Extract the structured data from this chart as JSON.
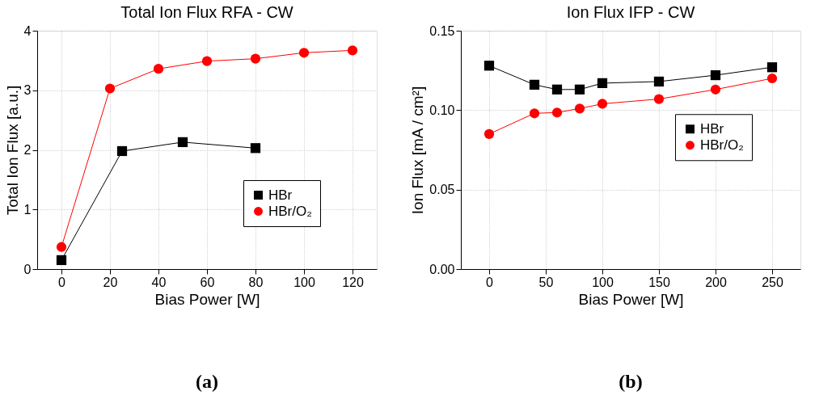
{
  "chart_data": [
    {
      "type": "line",
      "title": "Total Ion Flux RFA - CW",
      "xlabel": "Bias Power [W]",
      "ylabel": "Total Ion Flux [a.u.]",
      "xlim": [
        -10,
        130
      ],
      "xticks": [
        0,
        20,
        40,
        60,
        80,
        100,
        120
      ],
      "ylim": [
        0,
        4
      ],
      "yticks": [
        0,
        1,
        2,
        3,
        4
      ],
      "grid": true,
      "legend": "bottom right",
      "annotations": [
        "(a)"
      ],
      "series": [
        {
          "name": "HBr",
          "color": "#000000",
          "marker": "square",
          "x": [
            0,
            25,
            50,
            80
          ],
          "values": [
            0.15,
            1.98,
            2.13,
            2.03
          ]
        },
        {
          "name": "HBr/O₂",
          "color": "#ff0000",
          "marker": "circle",
          "x": [
            0,
            20,
            40,
            60,
            80,
            100,
            120
          ],
          "values": [
            0.37,
            3.03,
            3.36,
            3.49,
            3.53,
            3.63,
            3.67
          ]
        }
      ]
    },
    {
      "type": "line",
      "title": "Ion Flux IFP - CW",
      "xlabel": "Bias Power [W]",
      "ylabel": "Ion Flux [mA / cm²]",
      "xlim": [
        -25,
        275
      ],
      "xticks": [
        0,
        50,
        100,
        150,
        200,
        250
      ],
      "ylim": [
        0,
        0.15
      ],
      "yticks": [
        {
          "value": 0,
          "label": "0.00"
        },
        {
          "value": 0.05,
          "label": "0.05"
        },
        {
          "value": 0.1,
          "label": "0.10"
        },
        {
          "value": 0.15,
          "label": "0.15"
        }
      ],
      "grid": true,
      "legend": "right",
      "annotations": [
        "(b)"
      ],
      "series": [
        {
          "name": "HBr",
          "color": "#000000",
          "marker": "square",
          "x": [
            0,
            40,
            60,
            80,
            100,
            150,
            200,
            250
          ],
          "values": [
            0.128,
            0.116,
            0.113,
            0.113,
            0.117,
            0.118,
            0.122,
            0.127
          ]
        },
        {
          "name": "HBr/O₂",
          "color": "#ff0000",
          "marker": "circle",
          "x": [
            0,
            40,
            60,
            80,
            100,
            150,
            200,
            250
          ],
          "values": [
            0.085,
            0.098,
            0.0985,
            0.101,
            0.104,
            0.107,
            0.113,
            0.12
          ]
        }
      ]
    }
  ]
}
